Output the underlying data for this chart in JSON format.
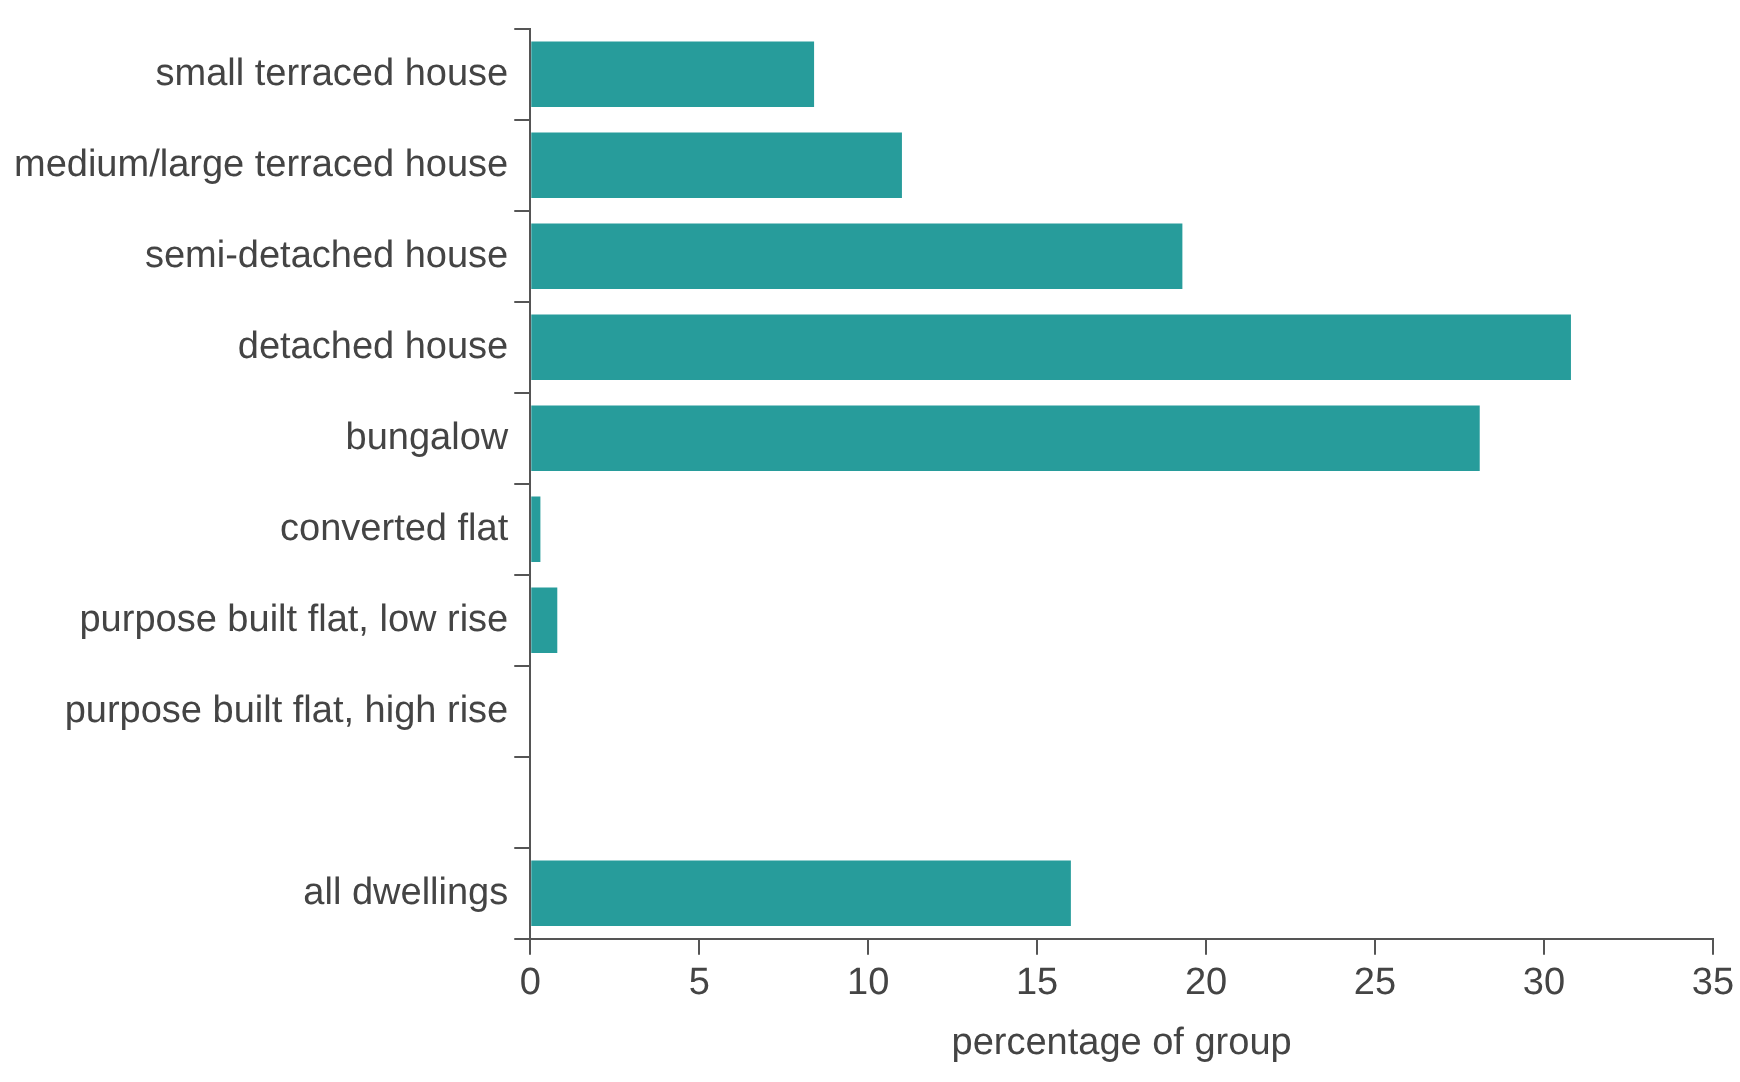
{
  "chart_data": {
    "type": "bar",
    "orientation": "horizontal",
    "xlabel": "percentage of group",
    "categories": [
      "small terraced house",
      "medium/large terraced house",
      "semi-detached house",
      "detached house",
      "bungalow",
      "converted flat",
      "purpose built flat, low rise",
      "purpose built flat, high rise",
      null,
      "all dwellings"
    ],
    "values": [
      8.4,
      11.0,
      19.3,
      30.8,
      28.1,
      0.3,
      0.8,
      0,
      null,
      16.0
    ],
    "color": "#279c9b",
    "xlim": [
      0,
      35
    ],
    "xticks": [
      0,
      5,
      10,
      15,
      20,
      25,
      30,
      35
    ],
    "grid": false,
    "legend": false
  }
}
